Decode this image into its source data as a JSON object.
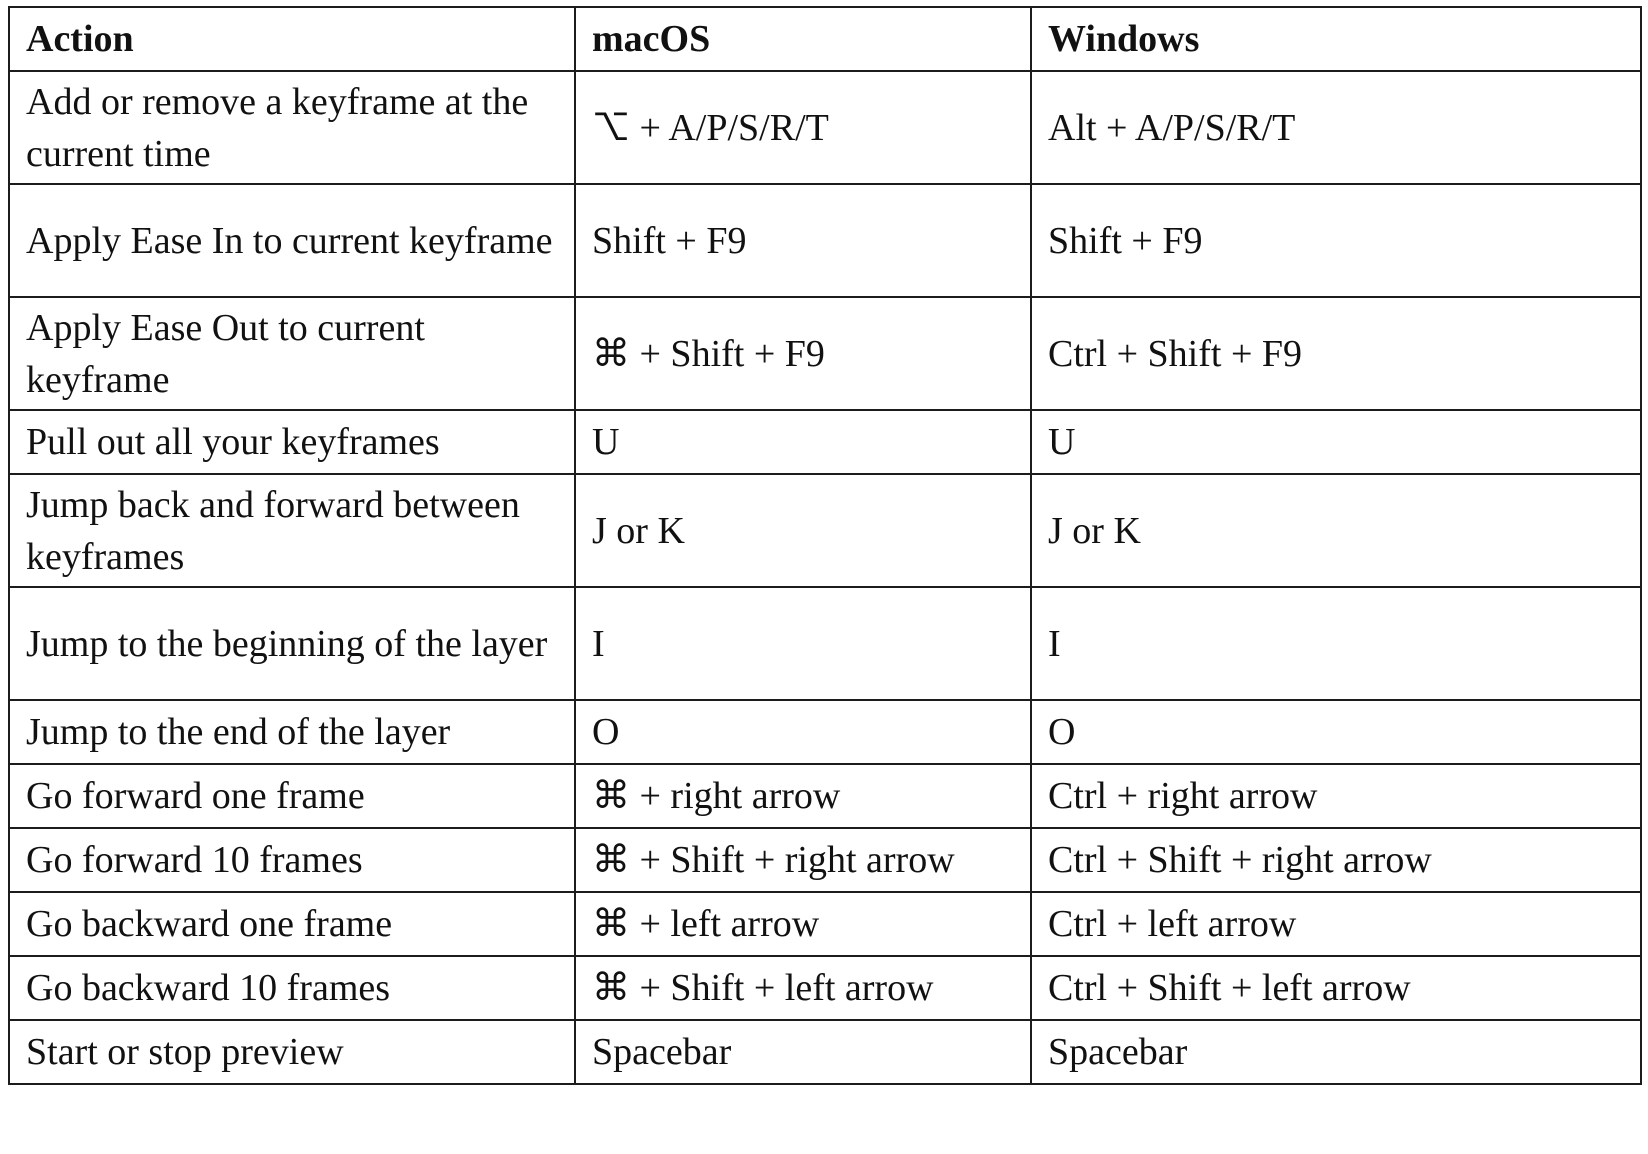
{
  "table": {
    "headers": [
      "Action",
      "macOS",
      "Windows"
    ],
    "rows": [
      {
        "action": "Add or remove a keyframe at the current time",
        "macos": "⌥ + A/P/S/R/T",
        "windows": "Alt + A/P/S/R/T",
        "tall": true
      },
      {
        "action": "Apply Ease In to current keyframe",
        "macos": "Shift + F9",
        "windows": "Shift + F9",
        "tall": true
      },
      {
        "action": "Apply Ease Out to current keyframe",
        "macos": "⌘ + Shift + F9",
        "windows": "Ctrl + Shift + F9",
        "tall": true
      },
      {
        "action": "Pull out all your keyframes",
        "macos": "U",
        "windows": "U",
        "tall": false
      },
      {
        "action": "Jump back and forward between keyframes",
        "macos": "J or K",
        "windows": "J or K",
        "tall": true
      },
      {
        "action": "Jump to the beginning of the layer",
        "macos": "I",
        "windows": "I",
        "tall": true
      },
      {
        "action": "Jump to the end of the layer",
        "macos": "O",
        "windows": "O",
        "tall": false
      },
      {
        "action": "Go forward one frame",
        "macos": "⌘ + right arrow",
        "windows": "Ctrl + right arrow",
        "tall": false
      },
      {
        "action": "Go forward 10 frames",
        "macos": "⌘ + Shift + right arrow",
        "windows": "Ctrl + Shift + right arrow",
        "tall": false
      },
      {
        "action": "Go backward one frame",
        "macos": "⌘ + left arrow",
        "windows": "Ctrl + left arrow",
        "tall": false
      },
      {
        "action": "Go backward 10 frames",
        "macos": "⌘ + Shift + left arrow",
        "windows": "Ctrl + Shift + left arrow",
        "tall": false
      },
      {
        "action": "Start or stop preview",
        "macos": "Spacebar",
        "windows": "Spacebar",
        "tall": false
      }
    ]
  }
}
